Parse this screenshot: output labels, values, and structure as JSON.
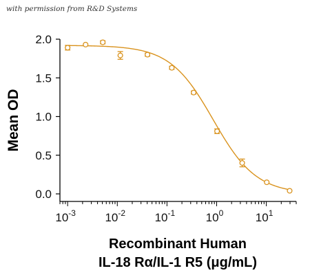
{
  "permission_note": "with permission from R&D Systems",
  "colors": {
    "series": "#D9921C",
    "axis": "#000000"
  },
  "chart_data": {
    "type": "scatter",
    "title": "",
    "xlabel_lines": [
      "Recombinant Human",
      "IL-18 Rα/IL-1 R5 (μg/mL)"
    ],
    "ylabel": "Mean OD",
    "x_scale": "log",
    "xlim": [
      0.0007,
      40
    ],
    "ylim": [
      0.0,
      2.0
    ],
    "x_ticks": [
      {
        "base": "10",
        "exp": "-3",
        "value": 0.001
      },
      {
        "base": "10",
        "exp": "-2",
        "value": 0.01
      },
      {
        "base": "10",
        "exp": "-1",
        "value": 0.1
      },
      {
        "base": "10",
        "exp": "0",
        "value": 1
      },
      {
        "base": "10",
        "exp": "1",
        "value": 10
      }
    ],
    "y_ticks": [
      "0.0",
      "0.5",
      "1.0",
      "1.5",
      "2.0"
    ],
    "y_tick_values": [
      0.0,
      0.5,
      1.0,
      1.5,
      2.0
    ],
    "grid": false,
    "series": [
      {
        "x": [
          0.001,
          0.0023,
          0.0051,
          0.0115,
          0.0405,
          0.125,
          0.344,
          1.02,
          3.27,
          10.2,
          29.5
        ],
        "y": [
          1.89,
          1.93,
          1.96,
          1.79,
          1.8,
          1.63,
          1.31,
          0.81,
          0.4,
          0.15,
          0.04
        ],
        "err": [
          0.03,
          0.0,
          0.02,
          0.05,
          0.02,
          0.02,
          0.02,
          0.03,
          0.05,
          0.0,
          0.0
        ]
      }
    ],
    "fit_curve": {
      "top": 1.92,
      "bottom": 0.0,
      "ec50": 0.85,
      "hill": 1.0
    }
  }
}
